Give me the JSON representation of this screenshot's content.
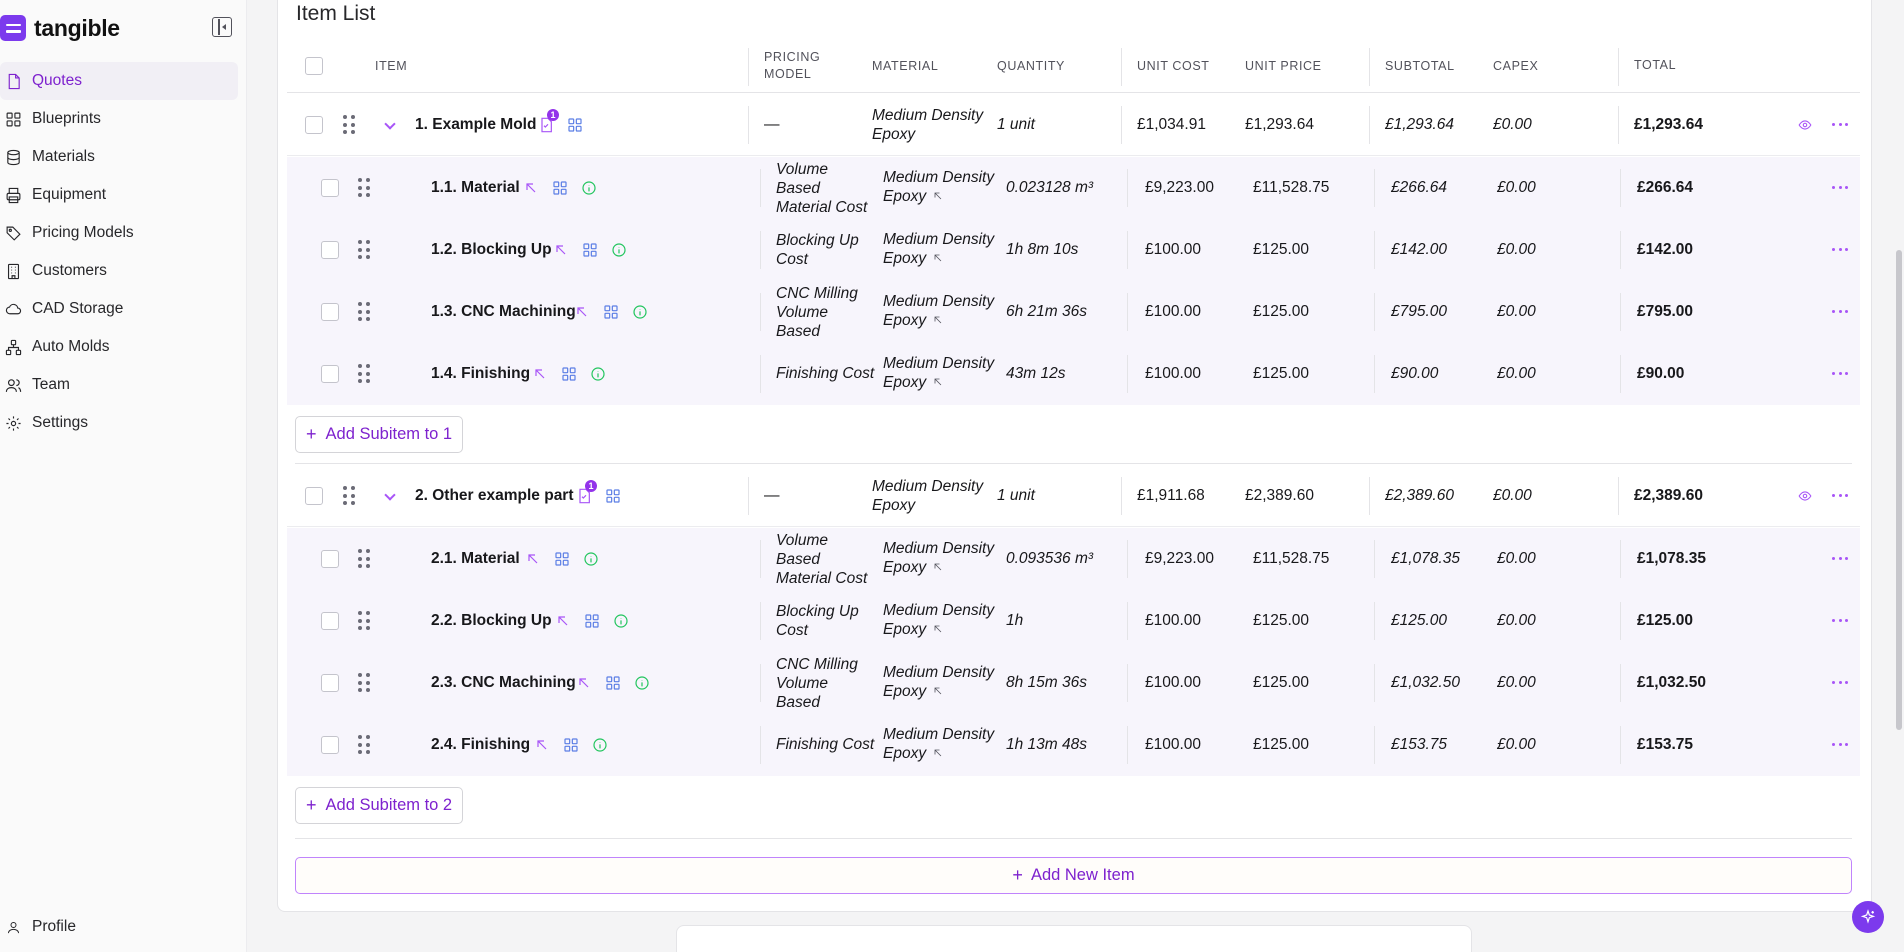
{
  "brand": {
    "name": "tangible"
  },
  "sidebar": {
    "items": [
      {
        "label": "Quotes",
        "icon": "document-icon",
        "active": true
      },
      {
        "label": "Blueprints",
        "icon": "grid-icon"
      },
      {
        "label": "Materials",
        "icon": "database-icon"
      },
      {
        "label": "Equipment",
        "icon": "printer-icon"
      },
      {
        "label": "Pricing Models",
        "icon": "tag-icon"
      },
      {
        "label": "Customers",
        "icon": "building-icon"
      },
      {
        "label": "CAD Storage",
        "icon": "cloud-icon"
      },
      {
        "label": "Auto Molds",
        "icon": "network-icon"
      },
      {
        "label": "Team",
        "icon": "users-icon"
      },
      {
        "label": "Settings",
        "icon": "gear-icon"
      }
    ],
    "profile": "Profile"
  },
  "page": {
    "title": "Item List"
  },
  "columns": {
    "item": "ITEM",
    "pricing_model": "PRICING MODEL",
    "material": "MATERIAL",
    "quantity": "QUANTITY",
    "unit_cost": "UNIT COST",
    "unit_price": "UNIT PRICE",
    "subtotal": "SUBTOTAL",
    "capex": "CAPEX",
    "total": "TOTAL"
  },
  "items": [
    {
      "name": "1. Example Mold",
      "badge": "1",
      "pricing_model": "—",
      "material": "Medium Density Epoxy",
      "quantity": "1 unit",
      "unit_cost": "£1,034.91",
      "unit_price": "£1,293.64",
      "subtotal": "£1,293.64",
      "capex": "£0.00",
      "total": "£1,293.64",
      "add_subitem": "Add Subitem to 1",
      "subitems": [
        {
          "name": "1.1. Material",
          "pricing_model": "Volume Based Material Cost",
          "material": "Medium Density Epoxy",
          "quantity": "0.023128 m³",
          "unit_cost": "£9,223.00",
          "unit_price": "£11,528.75",
          "subtotal": "£266.64",
          "capex": "£0.00",
          "total": "£266.64"
        },
        {
          "name": "1.2. Blocking Up",
          "pricing_model": "Blocking Up Cost",
          "material": "Medium Density Epoxy",
          "quantity": "1h 8m 10s",
          "unit_cost": "£100.00",
          "unit_price": "£125.00",
          "subtotal": "£142.00",
          "capex": "£0.00",
          "total": "£142.00"
        },
        {
          "name": "1.3. CNC Machining",
          "pricing_model": "CNC Milling Volume Based",
          "material": "Medium Density Epoxy",
          "quantity": "6h 21m 36s",
          "unit_cost": "£100.00",
          "unit_price": "£125.00",
          "subtotal": "£795.00",
          "capex": "£0.00",
          "total": "£795.00"
        },
        {
          "name": "1.4. Finishing",
          "pricing_model": "Finishing Cost",
          "material": "Medium Density Epoxy",
          "quantity": "43m 12s",
          "unit_cost": "£100.00",
          "unit_price": "£125.00",
          "subtotal": "£90.00",
          "capex": "£0.00",
          "total": "£90.00"
        }
      ]
    },
    {
      "name": "2. Other example part",
      "badge": "1",
      "pricing_model": "—",
      "material": "Medium Density Epoxy",
      "quantity": "1 unit",
      "unit_cost": "£1,911.68",
      "unit_price": "£2,389.60",
      "subtotal": "£2,389.60",
      "capex": "£0.00",
      "total": "£2,389.60",
      "add_subitem": "Add Subitem to 2",
      "subitems": [
        {
          "name": "2.1. Material",
          "pricing_model": "Volume Based Material Cost",
          "material": "Medium Density Epoxy",
          "quantity": "0.093536 m³",
          "unit_cost": "£9,223.00",
          "unit_price": "£11,528.75",
          "subtotal": "£1,078.35",
          "capex": "£0.00",
          "total": "£1,078.35"
        },
        {
          "name": "2.2. Blocking Up",
          "pricing_model": "Blocking Up Cost",
          "material": "Medium Density Epoxy",
          "quantity": "1h",
          "unit_cost": "£100.00",
          "unit_price": "£125.00",
          "subtotal": "£125.00",
          "capex": "£0.00",
          "total": "£125.00"
        },
        {
          "name": "2.3. CNC Machining",
          "pricing_model": "CNC Milling Volume Based",
          "material": "Medium Density Epoxy",
          "quantity": "8h 15m 36s",
          "unit_cost": "£100.00",
          "unit_price": "£125.00",
          "subtotal": "£1,032.50",
          "capex": "£0.00",
          "total": "£1,032.50"
        },
        {
          "name": "2.4. Finishing",
          "pricing_model": "Finishing Cost",
          "material": "Medium Density Epoxy",
          "quantity": "1h 13m 48s",
          "unit_cost": "£100.00",
          "unit_price": "£125.00",
          "subtotal": "£153.75",
          "capex": "£0.00",
          "total": "£153.75"
        }
      ]
    }
  ],
  "add_new_item": "Add New Item",
  "colors": {
    "accent": "#7c3aed",
    "accent_text": "#7e22ce",
    "subrow_bg": "#f7f5fc"
  }
}
